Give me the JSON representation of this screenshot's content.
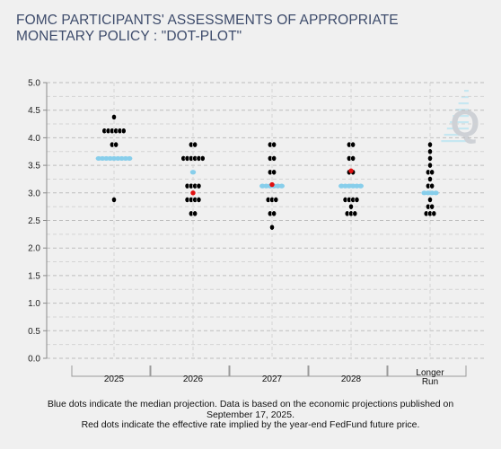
{
  "title_lines": [
    "FOMC PARTICIPANTS' ASSESSMENTS OF APPROPRIATE",
    "MONETARY POLICY : \"DOT-PLOT\""
  ],
  "footnote_lines": [
    "Blue dots indicate the median projection. Data is based on the economic projections published on",
    "September 17, 2025.",
    "Red dots indicate the effective rate implied by the year-end FedFund future price."
  ],
  "watermark_letter": "Q",
  "colors": {
    "participant_dot": "#000000",
    "median_dot": "#87ceeb",
    "implied_rate_dot": "#e01010",
    "grid": "#c8c8c8",
    "title": "#3d4b6b"
  },
  "chart_data": {
    "type": "scatter",
    "title": "FOMC PARTICIPANTS' ASSESSMENTS OF APPROPRIATE MONETARY POLICY : \"DOT-PLOT\"",
    "xlabel": "",
    "ylabel": "",
    "categories": [
      "2025",
      "2026",
      "2027",
      "2028",
      "Longer Run"
    ],
    "category_label_lines": [
      [
        "2025"
      ],
      [
        "2026"
      ],
      [
        "2027"
      ],
      [
        "2028"
      ],
      [
        "Longer",
        "Run"
      ]
    ],
    "ylim": [
      0,
      5
    ],
    "yticks": [
      "0.0",
      "0.5",
      "1.0",
      "1.5",
      "2.0",
      "2.5",
      "3.0",
      "3.5",
      "4.0",
      "4.5",
      "5.0"
    ],
    "grid": true,
    "series": [
      {
        "category": "2025",
        "participants": [
          {
            "rate": 4.375,
            "count": 1
          },
          {
            "rate": 4.125,
            "count": 6
          },
          {
            "rate": 3.875,
            "count": 2
          },
          {
            "rate": 3.625,
            "count": 9
          },
          {
            "rate": 2.875,
            "count": 1
          }
        ],
        "median": 3.625,
        "implied_rate": null
      },
      {
        "category": "2026",
        "participants": [
          {
            "rate": 3.875,
            "count": 2
          },
          {
            "rate": 3.625,
            "count": 6
          },
          {
            "rate": 3.375,
            "count": 1
          },
          {
            "rate": 3.125,
            "count": 4
          },
          {
            "rate": 2.875,
            "count": 4
          },
          {
            "rate": 2.625,
            "count": 2
          }
        ],
        "median": 3.375,
        "implied_rate": 3.0
      },
      {
        "category": "2027",
        "participants": [
          {
            "rate": 3.875,
            "count": 2
          },
          {
            "rate": 3.625,
            "count": 2
          },
          {
            "rate": 3.375,
            "count": 2
          },
          {
            "rate": 3.125,
            "count": 6
          },
          {
            "rate": 2.875,
            "count": 3
          },
          {
            "rate": 2.625,
            "count": 2
          },
          {
            "rate": 2.375,
            "count": 1
          }
        ],
        "median": 3.125,
        "implied_rate": 3.15
      },
      {
        "category": "2028",
        "participants": [
          {
            "rate": 3.875,
            "count": 2
          },
          {
            "rate": 3.625,
            "count": 2
          },
          {
            "rate": 3.375,
            "count": 2
          },
          {
            "rate": 3.125,
            "count": 6
          },
          {
            "rate": 2.875,
            "count": 4
          },
          {
            "rate": 2.75,
            "count": 1
          },
          {
            "rate": 2.625,
            "count": 3
          }
        ],
        "median": 3.125,
        "implied_rate": 3.4
      },
      {
        "category": "Longer Run",
        "participants": [
          {
            "rate": 3.875,
            "count": 1
          },
          {
            "rate": 3.75,
            "count": 1
          },
          {
            "rate": 3.625,
            "count": 1
          },
          {
            "rate": 3.5,
            "count": 1
          },
          {
            "rate": 3.375,
            "count": 2
          },
          {
            "rate": 3.25,
            "count": 1
          },
          {
            "rate": 3.125,
            "count": 2
          },
          {
            "rate": 3.0,
            "count": 4
          },
          {
            "rate": 2.875,
            "count": 1
          },
          {
            "rate": 2.75,
            "count": 2
          },
          {
            "rate": 2.625,
            "count": 3
          }
        ],
        "median": 3.0,
        "implied_rate": null
      }
    ]
  }
}
